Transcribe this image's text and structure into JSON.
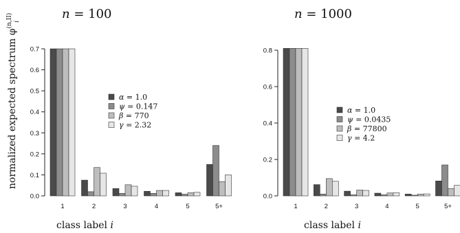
{
  "ylabel_main": "normalized expected spectrum φ",
  "ylabel_sup": "(n,II)",
  "ylabel_sub": "i",
  "xlabel_text": "class label ",
  "xlabel_var": "i",
  "colors": [
    "#4a4a4a",
    "#8c8c8c",
    "#bdbdbd",
    "#e6e6e6"
  ],
  "chart_data": [
    {
      "type": "bar",
      "title": "n = 100",
      "categories": [
        "1",
        "2",
        "3",
        "4",
        "5",
        "5+"
      ],
      "ylim": [
        0,
        0.7
      ],
      "yticks": [
        "0.0",
        "0.1",
        "0.2",
        "0.3",
        "0.4",
        "0.5",
        "0.6",
        "0.7"
      ],
      "legend_position": "center-right",
      "series": [
        {
          "name": "α = 1.0",
          "values": [
            0.7,
            0.075,
            0.035,
            0.022,
            0.015,
            0.15
          ]
        },
        {
          "name": "ψ = 0.147",
          "values": [
            0.7,
            0.02,
            0.012,
            0.012,
            0.008,
            0.24
          ]
        },
        {
          "name": "β = 770",
          "values": [
            0.7,
            0.135,
            0.053,
            0.026,
            0.015,
            0.068
          ]
        },
        {
          "name": "γ = 2.32",
          "values": [
            0.7,
            0.108,
            0.046,
            0.026,
            0.017,
            0.1
          ]
        }
      ]
    },
    {
      "type": "bar",
      "title": "n = 1000",
      "categories": [
        "1",
        "2",
        "3",
        "4",
        "5",
        "5+"
      ],
      "ylim": [
        0,
        0.8
      ],
      "yticks": [
        "0.0",
        "0.2",
        "0.4",
        "0.6",
        "0.8"
      ],
      "legend_position": "center-right",
      "series": [
        {
          "name": "α = 1.0",
          "values": [
            0.81,
            0.062,
            0.026,
            0.015,
            0.01,
            0.082
          ]
        },
        {
          "name": "ψ = 0.0435",
          "values": [
            0.81,
            0.01,
            0.006,
            0.006,
            0.004,
            0.17
          ]
        },
        {
          "name": "β = 77800",
          "values": [
            0.81,
            0.095,
            0.032,
            0.016,
            0.01,
            0.04
          ]
        },
        {
          "name": "γ = 4.2",
          "values": [
            0.81,
            0.08,
            0.03,
            0.017,
            0.011,
            0.058
          ]
        }
      ]
    }
  ]
}
